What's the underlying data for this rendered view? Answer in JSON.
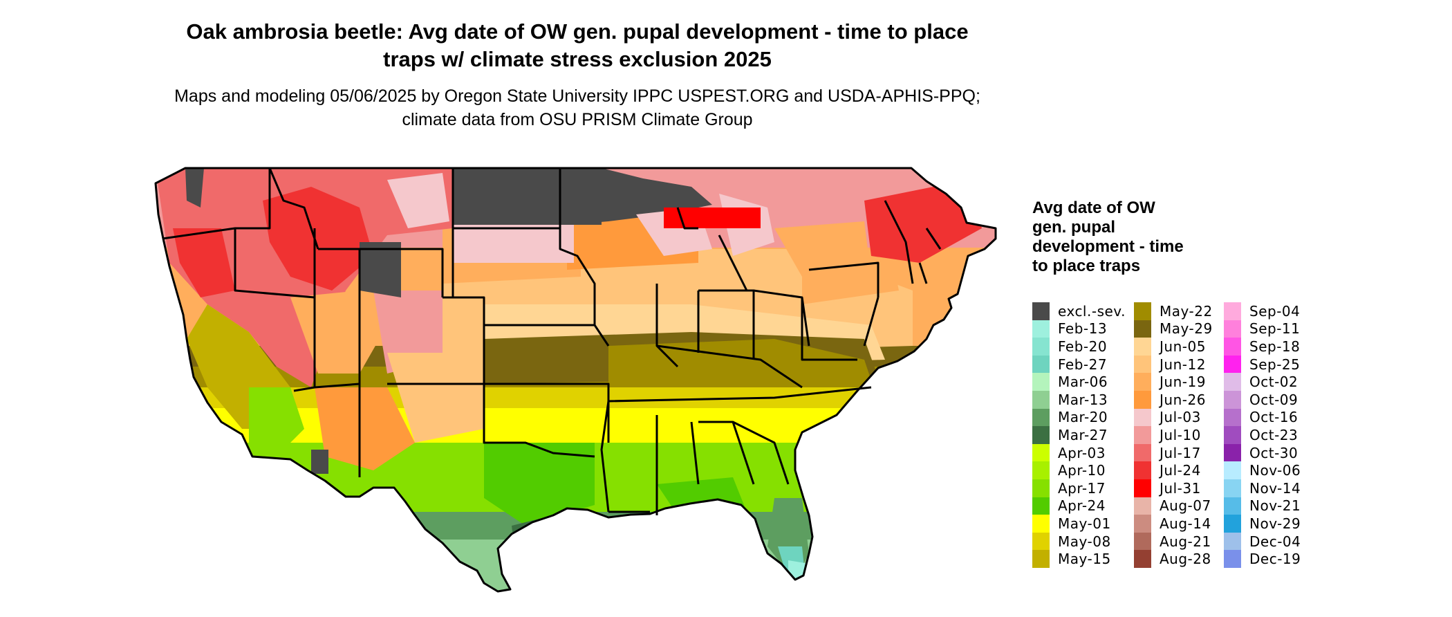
{
  "title": "Oak ambrosia beetle: Avg date of OW gen. pupal development - time to place traps w/ climate stress exclusion 2025",
  "subtitle": "Maps and modeling 05/06/2025 by Oregon State University IPPC USPEST.ORG and USDA-APHIS-PPQ; climate data from OSU PRISM Climate Group",
  "legend": {
    "title": "Avg date of OW gen. pupal development - time to place traps",
    "columns": [
      [
        {
          "label": "excl.-sev.",
          "color": "#4a4a4a"
        },
        {
          "label": "Feb-13",
          "color": "#9ef0de"
        },
        {
          "label": "Feb-20",
          "color": "#86e4d0"
        },
        {
          "label": "Feb-27",
          "color": "#6ed4bf"
        },
        {
          "label": "Mar-06",
          "color": "#b4f4bc"
        },
        {
          "label": "Mar-13",
          "color": "#8fcf92"
        },
        {
          "label": "Mar-20",
          "color": "#5d9e60"
        },
        {
          "label": "Mar-27",
          "color": "#3b7042"
        },
        {
          "label": "Apr-03",
          "color": "#ccff00"
        },
        {
          "label": "Apr-10",
          "color": "#a8f000"
        },
        {
          "label": "Apr-17",
          "color": "#86e000"
        },
        {
          "label": "Apr-24",
          "color": "#52cc00"
        },
        {
          "label": "May-01",
          "color": "#ffff00"
        },
        {
          "label": "May-08",
          "color": "#e0d200"
        },
        {
          "label": "May-15",
          "color": "#c2b000"
        }
      ],
      [
        {
          "label": "May-22",
          "color": "#a08c00"
        },
        {
          "label": "May-29",
          "color": "#7a6610"
        },
        {
          "label": "Jun-05",
          "color": "#ffd694"
        },
        {
          "label": "Jun-12",
          "color": "#ffc47a"
        },
        {
          "label": "Jun-19",
          "color": "#ffae5c"
        },
        {
          "label": "Jun-26",
          "color": "#ff9a3c"
        },
        {
          "label": "Jul-03",
          "color": "#f5c8cc"
        },
        {
          "label": "Jul-10",
          "color": "#f29a9a"
        },
        {
          "label": "Jul-17",
          "color": "#f06a6a"
        },
        {
          "label": "Jul-24",
          "color": "#f03232"
        },
        {
          "label": "Jul-31",
          "color": "#ff0000"
        },
        {
          "label": "Aug-07",
          "color": "#e8b4a8"
        },
        {
          "label": "Aug-14",
          "color": "#cc8c80"
        },
        {
          "label": "Aug-21",
          "color": "#b06a5c"
        },
        {
          "label": "Aug-28",
          "color": "#944032"
        }
      ],
      [
        {
          "label": "Sep-04",
          "color": "#ffaadd"
        },
        {
          "label": "Sep-11",
          "color": "#ff80dc"
        },
        {
          "label": "Sep-18",
          "color": "#ff55e4"
        },
        {
          "label": "Sep-25",
          "color": "#ff22ee"
        },
        {
          "label": "Oct-02",
          "color": "#e0bce8"
        },
        {
          "label": "Oct-09",
          "color": "#cc94d8"
        },
        {
          "label": "Oct-16",
          "color": "#b670cc"
        },
        {
          "label": "Oct-23",
          "color": "#a04cbf"
        },
        {
          "label": "Oct-30",
          "color": "#8a22aa"
        },
        {
          "label": "Nov-06",
          "color": "#b8ecff"
        },
        {
          "label": "Nov-14",
          "color": "#88d4f2"
        },
        {
          "label": "Nov-21",
          "color": "#56bce8"
        },
        {
          "label": "Nov-29",
          "color": "#22a2dc"
        },
        {
          "label": "Dec-04",
          "color": "#9ec0ea"
        },
        {
          "label": "Dec-19",
          "color": "#7a90ea"
        }
      ]
    ]
  }
}
